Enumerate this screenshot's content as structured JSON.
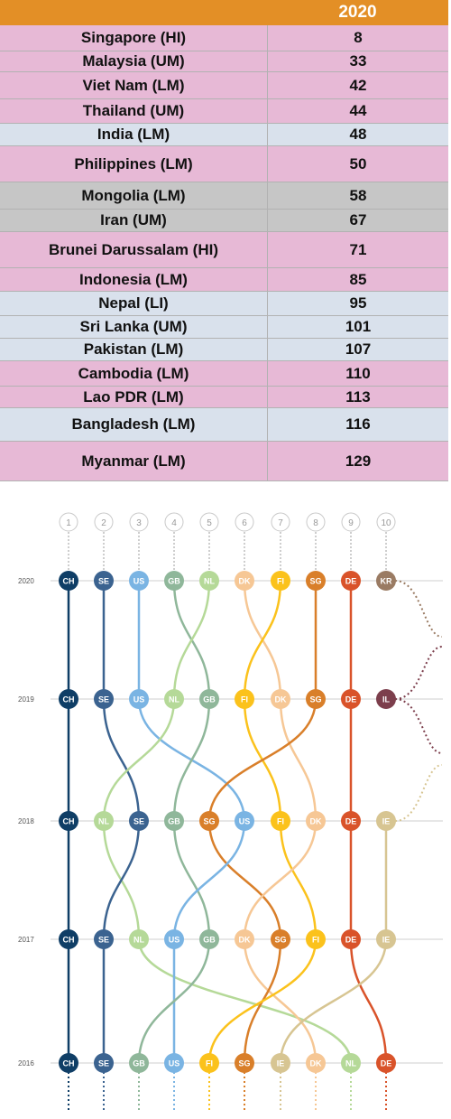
{
  "table": {
    "year_header": "2020",
    "rows": [
      {
        "country": "Singapore (HI)",
        "rank": "8",
        "bg": "#e7b9d6"
      },
      {
        "country": "Malaysia (UM)",
        "rank": "33",
        "bg": "#e7b9d6"
      },
      {
        "country": "Viet Nam (LM)",
        "rank": "42",
        "bg": "#e7b9d6"
      },
      {
        "country": "Thailand (UM)",
        "rank": "44",
        "bg": "#e7b9d6"
      },
      {
        "country": "India (LM)",
        "rank": "48",
        "bg": "#d9e1ec"
      },
      {
        "country": "Philippines (LM)",
        "rank": "50",
        "bg": "#e7b9d6"
      },
      {
        "country": "Mongolia (LM)",
        "rank": "58",
        "bg": "#c6c6c6"
      },
      {
        "country": "Iran (UM)",
        "rank": "67",
        "bg": "#c6c6c6"
      },
      {
        "country": "Brunei Darussalam (HI)",
        "rank": "71",
        "bg": "#e7b9d6"
      },
      {
        "country": "Indonesia (LM)",
        "rank": "85",
        "bg": "#e7b9d6"
      },
      {
        "country": "Nepal (LI)",
        "rank": "95",
        "bg": "#d9e1ec"
      },
      {
        "country": "Sri Lanka (UM)",
        "rank": "101",
        "bg": "#d9e1ec"
      },
      {
        "country": "Pakistan (LM)",
        "rank": "107",
        "bg": "#d9e1ec"
      },
      {
        "country": "Cambodia (LM)",
        "rank": "110",
        "bg": "#e7b9d6"
      },
      {
        "country": "Lao PDR (LM)",
        "rank": "113",
        "bg": "#e7b9d6"
      },
      {
        "country": "Bangladesh (LM)",
        "rank": "116",
        "bg": "#d9e1ec"
      },
      {
        "country": "Myanmar (LM)",
        "rank": "129",
        "bg": "#e7b9d6"
      }
    ]
  },
  "chart_data": {
    "type": "bump",
    "ranks": [
      "1",
      "2",
      "3",
      "4",
      "5",
      "6",
      "7",
      "8",
      "9",
      "10"
    ],
    "years": [
      "2020",
      "2019",
      "2018",
      "2017",
      "2016"
    ],
    "rankings": {
      "2020": [
        "CH",
        "SE",
        "US",
        "GB",
        "NL",
        "DK",
        "FI",
        "SG",
        "DE",
        "KR"
      ],
      "2019": [
        "CH",
        "SE",
        "US",
        "NL",
        "GB",
        "FI",
        "DK",
        "SG",
        "DE",
        "IL"
      ],
      "2018": [
        "CH",
        "NL",
        "SE",
        "GB",
        "SG",
        "US",
        "FI",
        "DK",
        "DE",
        "IE"
      ],
      "2017": [
        "CH",
        "SE",
        "NL",
        "US",
        "GB",
        "DK",
        "SG",
        "FI",
        "DE",
        "IE"
      ],
      "2016": [
        "CH",
        "SE",
        "GB",
        "US",
        "FI",
        "SG",
        "IE",
        "DK",
        "NL",
        "DE"
      ]
    },
    "colors": {
      "CH": "#0f3e66",
      "SE": "#3b6390",
      "US": "#7ab4e3",
      "GB": "#8fb79a",
      "NL": "#b5d998",
      "DK": "#f6c795",
      "FI": "#fbc21c",
      "SG": "#d97f2a",
      "DE": "#d9532a",
      "KR": "#9a7b63",
      "IL": "#7c3e4c",
      "IE": "#d7c592"
    }
  }
}
